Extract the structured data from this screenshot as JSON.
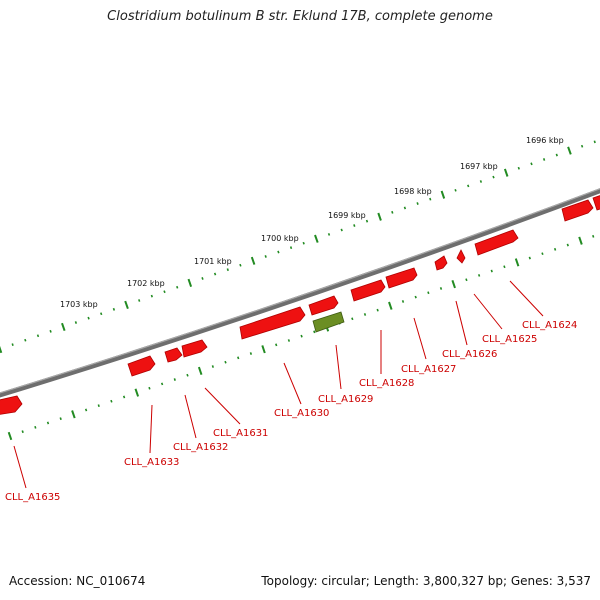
{
  "title": "Clostridium botulinum B str. Eklund 17B, complete genome",
  "accession": "Accession: NC_010674",
  "topology": "Topology: circular; Length: 3,800,327 bp; Genes: 3,537",
  "kbp_labels": [
    "1696 kbp",
    "1697 kbp",
    "1698 kbp",
    "1699 kbp",
    "1700 kbp",
    "1701 kbp",
    "1702 kbp",
    "1703 kbp"
  ],
  "gene_labels": [
    "CLL_A1624",
    "CLL_A1625",
    "CLL_A1626",
    "CLL_A1627",
    "CLL_A1628",
    "CLL_A1629",
    "CLL_A1630",
    "CLL_A1631",
    "CLL_A1632",
    "CLL_A1633",
    "CLL_A1635"
  ],
  "colors": {
    "gene": "#ee1111",
    "highlight_gene": "#6b8e23",
    "backbone": "#777777",
    "tick": "#228b22",
    "label": "#cc0000"
  }
}
